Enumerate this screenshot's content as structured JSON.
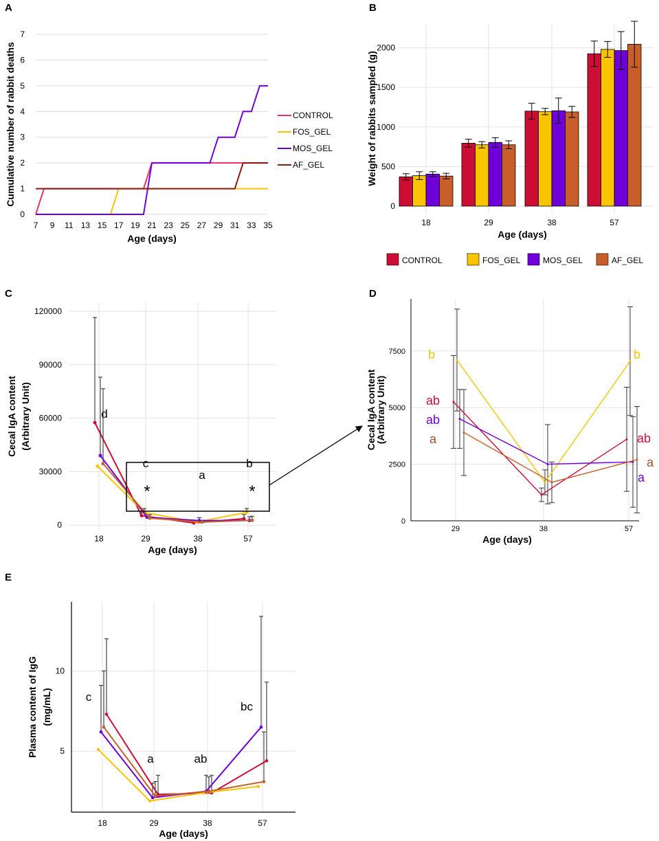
{
  "colors": {
    "CONTROL": "#cc0e34",
    "FOS_GEL": "#f9c400",
    "MOS_GEL": "#6f00d9",
    "AF_GEL": "#c85e2a",
    "A_CONTROL": "#ec2c6d",
    "A_AF_GEL": "#8b1b12",
    "D_a_AF": "#a05028"
  },
  "chart_data": [
    {
      "panel": "A",
      "type": "line",
      "title": "",
      "xlabel": "Age (days)",
      "ylabel": "Cumulative number of rabbit deaths",
      "xlim": [
        7,
        35
      ],
      "ylim": [
        0,
        7
      ],
      "x_ticks": [
        "7",
        "9",
        "11",
        "13",
        "15",
        "17",
        "19",
        "21",
        "23",
        "25",
        "27",
        "29",
        "31",
        "33",
        "35"
      ],
      "y_ticks": [
        "0",
        "1",
        "2",
        "3",
        "4",
        "5",
        "6",
        "7"
      ],
      "legend": [
        "CONTROL",
        "FOS_GEL",
        "MOS_GEL",
        "AF_GEL"
      ],
      "series": [
        {
          "name": "CONTROL",
          "points": [
            [
              7,
              0
            ],
            [
              8,
              1
            ],
            [
              20,
              1
            ],
            [
              21,
              2
            ],
            [
              35,
              2
            ]
          ]
        },
        {
          "name": "FOS_GEL",
          "points": [
            [
              7,
              0
            ],
            [
              16,
              0
            ],
            [
              17,
              1
            ],
            [
              35,
              1
            ]
          ]
        },
        {
          "name": "MOS_GEL",
          "points": [
            [
              7,
              0
            ],
            [
              20,
              0
            ],
            [
              21,
              2
            ],
            [
              28,
              2
            ],
            [
              29,
              3
            ],
            [
              31,
              3
            ],
            [
              32,
              4
            ],
            [
              33,
              4
            ],
            [
              34,
              5
            ],
            [
              35,
              5
            ]
          ]
        },
        {
          "name": "AF_GEL",
          "points": [
            [
              7,
              1
            ],
            [
              31,
              1
            ],
            [
              32,
              2
            ],
            [
              35,
              2
            ]
          ]
        }
      ]
    },
    {
      "panel": "B",
      "type": "bar",
      "title": "",
      "xlabel": "Age (days)",
      "ylabel": "Weight of rabbits sampled (g)",
      "categories": [
        "18",
        "29",
        "38",
        "57"
      ],
      "ylim": [
        0,
        2300
      ],
      "y_ticks": [
        "0",
        "500",
        "1000",
        "1500",
        "2000"
      ],
      "legend": [
        "CONTROL",
        "FOS_GEL",
        "MOS_GEL",
        "AF_GEL"
      ],
      "series": [
        {
          "name": "CONTROL",
          "values": [
            370,
            795,
            1200,
            1925
          ],
          "errors": [
            40,
            50,
            100,
            160
          ]
        },
        {
          "name": "FOS_GEL",
          "values": [
            385,
            775,
            1195,
            1980
          ],
          "errors": [
            50,
            40,
            40,
            100
          ]
        },
        {
          "name": "MOS_GEL",
          "values": [
            405,
            805,
            1205,
            1965
          ],
          "errors": [
            30,
            60,
            160,
            240
          ]
        },
        {
          "name": "AF_GEL",
          "values": [
            380,
            775,
            1190,
            2045
          ],
          "errors": [
            35,
            50,
            70,
            290
          ]
        }
      ]
    },
    {
      "panel": "C",
      "type": "line",
      "title": "",
      "xlabel": "Age (days)",
      "ylabel": "Cecal IgA content",
      "ylabel2": "(Arbitrary Unit)",
      "categories": [
        "18",
        "29",
        "38",
        "57"
      ],
      "ylim": [
        -3000,
        125000
      ],
      "y_ticks": [
        "0",
        "30000",
        "60000",
        "90000",
        "120000"
      ],
      "letters": [
        "d",
        "c",
        "a",
        "b"
      ],
      "asterisk": "*",
      "series": [
        {
          "name": "CONTROL",
          "values": [
            57500,
            5300,
            1200,
            3600
          ],
          "errors": [
            59000,
            1800,
            1000,
            2300
          ]
        },
        {
          "name": "FOS_GEL",
          "values": [
            33000,
            7100,
            1700,
            7100
          ],
          "errors": [
            0,
            2200,
            0,
            2200
          ]
        },
        {
          "name": "MOS_GEL",
          "values": [
            39000,
            4400,
            2500,
            2600
          ],
          "errors": [
            44000,
            1300,
            1700,
            2100
          ]
        },
        {
          "name": "AF_GEL",
          "values": [
            34500,
            3900,
            1700,
            2700
          ],
          "errors": [
            42000,
            1900,
            1000,
            2300
          ]
        }
      ]
    },
    {
      "panel": "D",
      "type": "line",
      "title": "",
      "xlabel": "Age (days)",
      "ylabel": "Cecal IgA content",
      "ylabel2": "(Arbitrary Unit)",
      "categories": [
        "29",
        "38",
        "57"
      ],
      "ylim": [
        0,
        9800
      ],
      "y_ticks": [
        "0",
        "2500",
        "5000",
        "7500"
      ],
      "letters": [
        {
          "at": "29",
          "labels": [
            "b",
            "ab",
            "ab",
            "a"
          ]
        },
        {
          "at": "57",
          "labels": [
            "b",
            "ab",
            "a",
            "a"
          ]
        }
      ],
      "series": [
        {
          "name": "CONTROL",
          "values": [
            5250,
            1150,
            3600
          ],
          "errors": [
            2050,
            300,
            2300
          ]
        },
        {
          "name": "FOS_GEL",
          "values": [
            7100,
            1700,
            7050
          ],
          "errors": [
            2250,
            550,
            2400
          ]
        },
        {
          "name": "MOS_GEL",
          "values": [
            4500,
            2500,
            2600
          ],
          "errors": [
            1300,
            1750,
            2000
          ]
        },
        {
          "name": "AF_GEL",
          "values": [
            3900,
            1700,
            2700
          ],
          "errors": [
            1900,
            900,
            2350
          ]
        }
      ]
    },
    {
      "panel": "E",
      "type": "line",
      "title": "",
      "xlabel": "Age (days)",
      "ylabel": "Plasma content of IgG",
      "ylabel2": "(mg/mL)",
      "categories": [
        "18",
        "29",
        "38",
        "57"
      ],
      "ylim": [
        1.2,
        14.3
      ],
      "y_ticks": [
        "5",
        "10"
      ],
      "letters": [
        "c",
        "a",
        "ab",
        "bc"
      ],
      "series": [
        {
          "name": "CONTROL",
          "values": [
            7.3,
            2.3,
            2.4,
            4.4
          ],
          "errors": [
            4.7,
            1.2,
            1.1,
            4.9
          ]
        },
        {
          "name": "FOS_GEL",
          "values": [
            5.1,
            1.9,
            2.4,
            2.8
          ],
          "errors": [
            0,
            0,
            0,
            0
          ]
        },
        {
          "name": "MOS_GEL",
          "values": [
            6.2,
            2.1,
            2.5,
            6.5
          ],
          "errors": [
            2.9,
            0.9,
            1.0,
            6.9
          ]
        },
        {
          "name": "AF_GEL",
          "values": [
            6.5,
            2.2,
            2.5,
            3.1
          ],
          "errors": [
            3.5,
            0.9,
            0.9,
            3.1
          ]
        }
      ]
    }
  ]
}
